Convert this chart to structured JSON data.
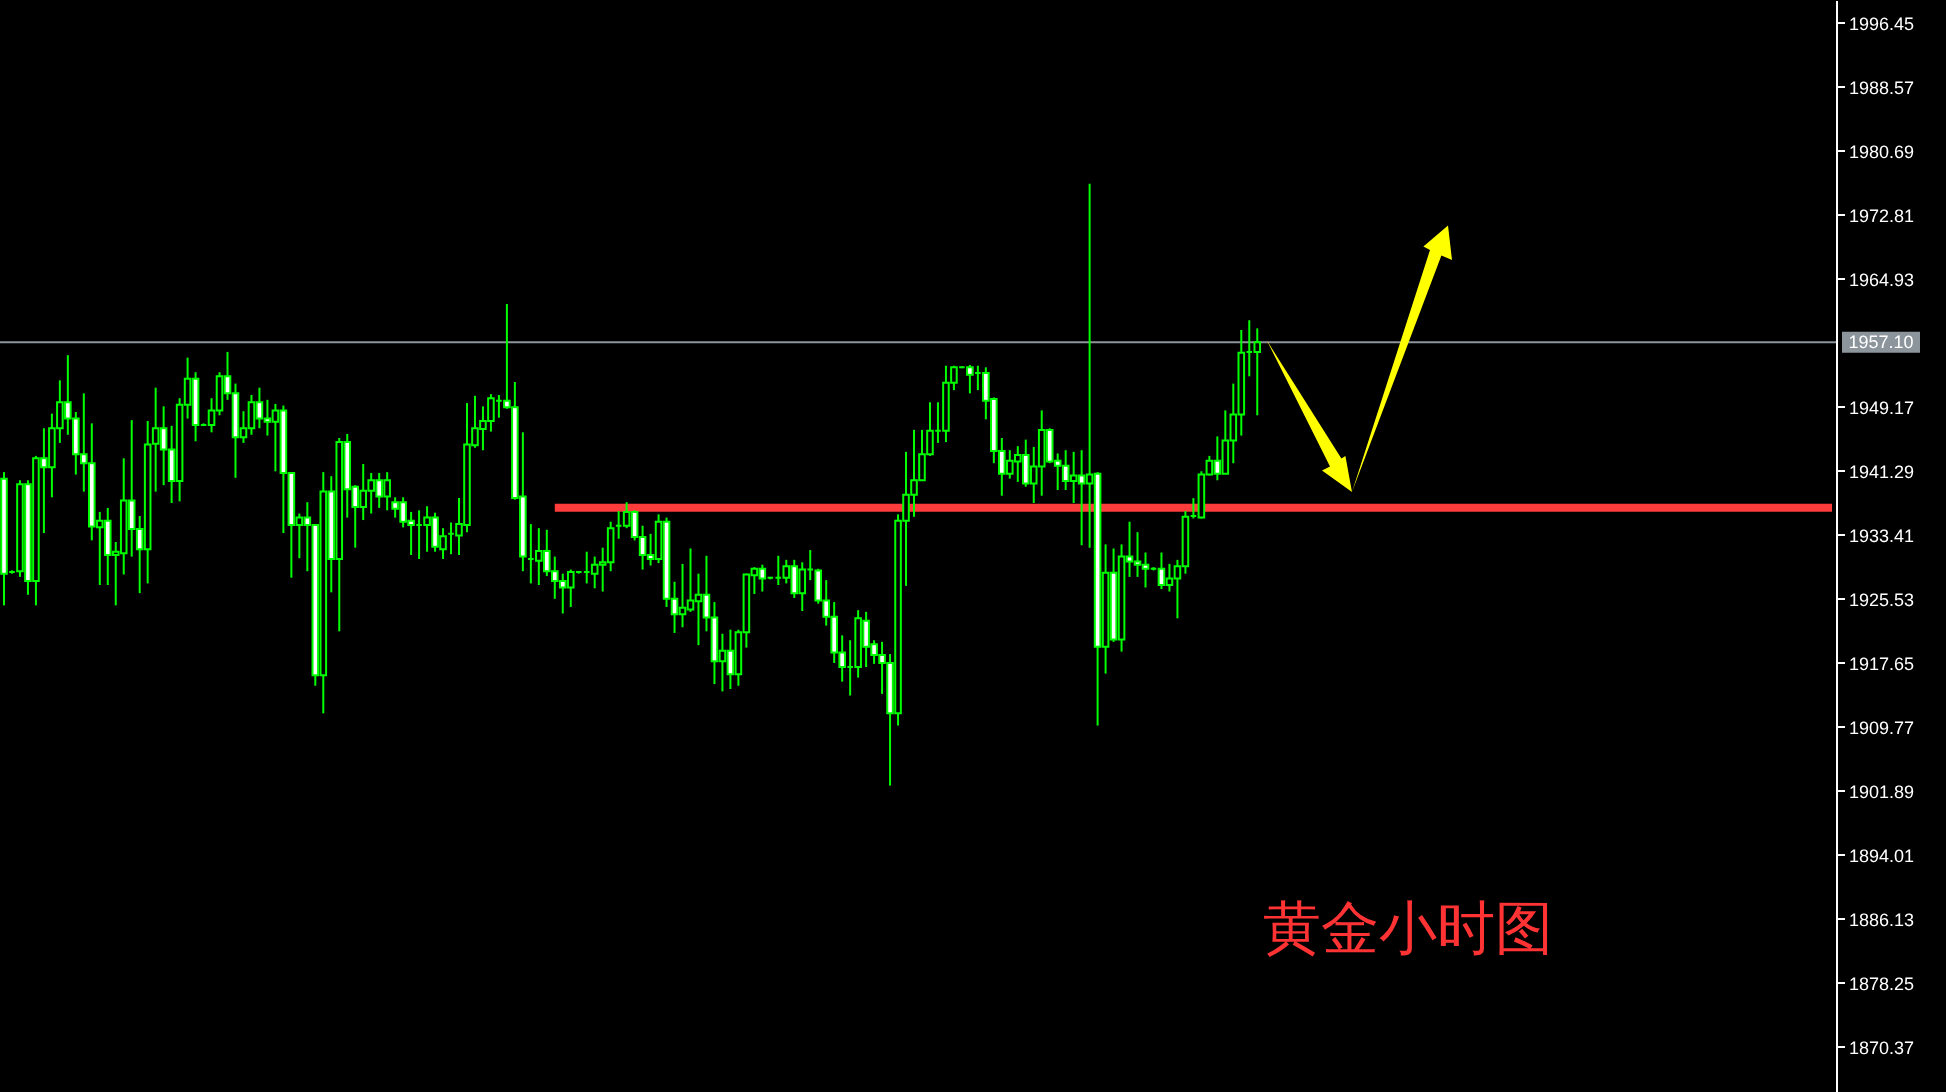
{
  "chart_data": {
    "type": "candlestick",
    "color": "#00ff00",
    "categories": [
      null,
      null,
      null,
      null,
      null,
      null,
      null,
      null,
      null,
      null,
      null,
      null,
      null,
      null,
      null,
      null,
      null,
      null,
      null,
      null,
      null,
      null,
      null,
      null,
      null,
      null,
      null,
      null,
      null,
      null,
      null,
      null,
      null,
      null,
      null,
      null,
      null,
      null,
      null,
      null,
      null,
      null,
      null,
      null,
      null,
      null,
      null,
      null,
      null,
      null,
      null,
      null,
      null,
      null,
      null,
      null,
      null,
      null,
      null,
      null,
      null,
      null,
      null,
      null,
      null,
      null,
      null,
      null,
      null,
      null,
      null,
      null,
      null,
      null,
      null,
      null,
      null,
      null,
      null,
      null,
      null,
      null,
      null,
      null,
      null,
      null,
      null,
      null,
      null,
      null,
      null,
      null,
      null,
      null,
      null,
      null,
      null,
      null,
      null,
      null,
      null,
      null,
      null,
      null,
      null,
      null,
      null,
      null,
      null,
      null,
      null,
      null,
      null,
      null,
      null,
      null,
      null,
      null,
      null,
      null,
      null,
      null,
      null,
      null,
      null,
      null,
      null,
      null,
      null,
      null,
      null,
      null,
      null,
      null,
      null,
      null,
      null,
      null,
      null,
      null,
      null,
      null,
      null,
      null,
      null,
      null,
      null,
      null,
      null,
      null,
      null,
      null,
      null,
      null,
      null,
      null,
      null,
      null,
      null,
      null,
      null,
      null,
      null,
      null,
      null,
      null,
      null,
      null,
      null,
      null,
      null,
      null,
      null,
      null,
      null,
      null,
      null,
      null,
      null,
      null,
      null,
      null,
      null,
      null,
      null,
      null,
      null,
      null,
      null,
      null,
      null,
      null,
      null,
      null,
      null,
      null,
      null,
      null,
      null,
      null,
      null,
      null,
      null,
      null,
      null,
      null,
      null,
      null,
      null,
      null,
      null,
      null,
      null,
      null,
      null,
      null,
      null,
      null,
      null,
      null,
      null,
      null,
      null,
      null,
      null,
      null,
      null,
      null,
      null,
      null
    ],
    "ohlc": [
      [
        1940.3,
        1941.1,
        1924.7,
        1928.6
      ],
      [
        1928.8,
        1929.0,
        1928.6,
        1928.8
      ],
      [
        1928.9,
        1940.1,
        1928.2,
        1939.6
      ],
      [
        1939.6,
        1940.1,
        1926.0,
        1927.7
      ],
      [
        1927.7,
        1943.1,
        1924.7,
        1942.8
      ],
      [
        1942.8,
        1946.5,
        1933.6,
        1941.7
      ],
      [
        1941.7,
        1948.3,
        1938.0,
        1946.5
      ],
      [
        1946.5,
        1952.4,
        1944.7,
        1949.7
      ],
      [
        1949.7,
        1955.5,
        1945.7,
        1947.7
      ],
      [
        1947.7,
        1948.5,
        1940.8,
        1943.3
      ],
      [
        1943.3,
        1950.8,
        1938.7,
        1942.2
      ],
      [
        1942.2,
        1947.1,
        1932.7,
        1934.4
      ],
      [
        1934.3,
        1936.2,
        1927.2,
        1935.1
      ],
      [
        1935.1,
        1936.7,
        1927.2,
        1930.9
      ],
      [
        1930.9,
        1932.5,
        1924.7,
        1931.3
      ],
      [
        1931.1,
        1942.8,
        1928.5,
        1937.6
      ],
      [
        1937.6,
        1947.5,
        1930.7,
        1934.1
      ],
      [
        1934.1,
        1935.7,
        1926.2,
        1931.6
      ],
      [
        1931.6,
        1947.4,
        1927.4,
        1944.5
      ],
      [
        1944.6,
        1951.5,
        1938.7,
        1946.5
      ],
      [
        1946.5,
        1949.2,
        1939.5,
        1943.9
      ],
      [
        1943.9,
        1946.8,
        1937.3,
        1940.0
      ],
      [
        1940.0,
        1950.2,
        1937.5,
        1949.4
      ],
      [
        1949.4,
        1955.2,
        1947.7,
        1952.6
      ],
      [
        1952.6,
        1953.4,
        1944.9,
        1946.9
      ],
      [
        1946.9,
        1947.1,
        1946.8,
        1946.9
      ],
      [
        1946.9,
        1950.2,
        1946.0,
        1948.7
      ],
      [
        1948.7,
        1953.4,
        1948.1,
        1952.9
      ],
      [
        1952.9,
        1955.9,
        1950.0,
        1950.8
      ],
      [
        1950.8,
        1952.0,
        1940.4,
        1945.4
      ],
      [
        1945.4,
        1948.6,
        1944.7,
        1946.5
      ],
      [
        1946.5,
        1950.6,
        1945.7,
        1949.7
      ],
      [
        1949.7,
        1951.5,
        1946.5,
        1947.7
      ],
      [
        1947.7,
        1950.0,
        1945.6,
        1947.3
      ],
      [
        1947.3,
        1949.5,
        1941.2,
        1948.7
      ],
      [
        1948.7,
        1949.3,
        1933.6,
        1941.0
      ],
      [
        1941.0,
        1941.0,
        1928.1,
        1934.6
      ],
      [
        1934.6,
        1936.0,
        1930.5,
        1935.5
      ],
      [
        1935.5,
        1937.4,
        1928.9,
        1934.6
      ],
      [
        1934.6,
        1934.6,
        1914.8,
        1916.1
      ],
      [
        1916.1,
        1941.1,
        1911.4,
        1938.7
      ],
      [
        1938.7,
        1940.6,
        1926.3,
        1930.4
      ],
      [
        1930.4,
        1945.3,
        1921.5,
        1944.8
      ],
      [
        1944.8,
        1945.8,
        1935.5,
        1939.0
      ],
      [
        1939.3,
        1939.5,
        1931.8,
        1936.8
      ],
      [
        1936.8,
        1942.1,
        1935.2,
        1938.8
      ],
      [
        1938.8,
        1941.0,
        1936.0,
        1940.1
      ],
      [
        1940.1,
        1941.0,
        1936.7,
        1938.1
      ],
      [
        1938.1,
        1941.1,
        1936.4,
        1940.1
      ],
      [
        1937.4,
        1938.0,
        1935.5,
        1936.6
      ],
      [
        1937.4,
        1938.0,
        1934.3,
        1935.0
      ],
      [
        1935.1,
        1936.2,
        1930.9,
        1934.6
      ],
      [
        1934.6,
        1936.4,
        1930.4,
        1934.6
      ],
      [
        1934.6,
        1936.9,
        1931.3,
        1935.5
      ],
      [
        1935.5,
        1936.1,
        1931.3,
        1931.9
      ],
      [
        1931.6,
        1934.2,
        1930.4,
        1933.2
      ],
      [
        1933.5,
        1934.9,
        1931.0,
        1933.5
      ],
      [
        1933.3,
        1937.9,
        1930.9,
        1934.7
      ],
      [
        1934.6,
        1949.6,
        1933.7,
        1944.5
      ],
      [
        1944.4,
        1950.5,
        1944.1,
        1946.5
      ],
      [
        1946.4,
        1949.2,
        1943.8,
        1947.4
      ],
      [
        1947.4,
        1950.7,
        1946.1,
        1950.2
      ],
      [
        1949.9,
        1950.6,
        1947.8,
        1949.9
      ],
      [
        1949.9,
        1961.8,
        1948.9,
        1949.1
      ],
      [
        1949.1,
        1952.2,
        1937.7,
        1937.9
      ],
      [
        1938.1,
        1946.0,
        1928.9,
        1930.7
      ],
      [
        1930.4,
        1934.7,
        1927.4,
        1930.4
      ],
      [
        1930.2,
        1934.2,
        1927.2,
        1931.4
      ],
      [
        1931.4,
        1934.0,
        1928.3,
        1928.9
      ],
      [
        1928.9,
        1930.7,
        1925.5,
        1927.7
      ],
      [
        1927.7,
        1928.6,
        1923.7,
        1926.9
      ],
      [
        1926.9,
        1929.1,
        1924.5,
        1928.8
      ],
      [
        1928.8,
        1928.9,
        1928.6,
        1928.8
      ],
      [
        1928.8,
        1931.3,
        1927.4,
        1928.8
      ],
      [
        1928.6,
        1930.7,
        1926.8,
        1929.7
      ],
      [
        1929.7,
        1931.8,
        1926.4,
        1930.0
      ],
      [
        1930.0,
        1935.0,
        1928.9,
        1934.2
      ],
      [
        1934.5,
        1936.3,
        1932.9,
        1934.5
      ],
      [
        1934.5,
        1937.4,
        1934.2,
        1936.2
      ],
      [
        1936.2,
        1936.4,
        1932.7,
        1933.1
      ],
      [
        1933.1,
        1934.5,
        1929.1,
        1930.9
      ],
      [
        1930.9,
        1933.5,
        1929.6,
        1930.4
      ],
      [
        1930.4,
        1935.9,
        1929.9,
        1935.0
      ],
      [
        1935.0,
        1935.5,
        1924.5,
        1925.5
      ],
      [
        1925.5,
        1927.6,
        1921.3,
        1923.6
      ],
      [
        1923.6,
        1929.8,
        1922.0,
        1924.4
      ],
      [
        1924.2,
        1931.7,
        1923.9,
        1925.3
      ],
      [
        1925.2,
        1928.6,
        1919.8,
        1926.0
      ],
      [
        1926.0,
        1930.8,
        1921.5,
        1923.2
      ],
      [
        1923.2,
        1925.1,
        1915.0,
        1917.8
      ],
      [
        1917.8,
        1921.2,
        1914.1,
        1919.1
      ],
      [
        1919.1,
        1921.7,
        1914.4,
        1916.2
      ],
      [
        1916.2,
        1921.7,
        1914.8,
        1921.4
      ],
      [
        1921.4,
        1928.6,
        1919.5,
        1928.5
      ],
      [
        1928.4,
        1929.4,
        1926.1,
        1929.2
      ],
      [
        1929.2,
        1929.7,
        1926.4,
        1928.0
      ],
      [
        1928.1,
        1928.2,
        1927.9,
        1928.1
      ],
      [
        1928.1,
        1930.8,
        1927.2,
        1928.1
      ],
      [
        1928.1,
        1930.3,
        1927.4,
        1929.5
      ],
      [
        1929.5,
        1930.3,
        1925.6,
        1926.2
      ],
      [
        1926.2,
        1930.0,
        1924.0,
        1929.1
      ],
      [
        1929.1,
        1931.5,
        1927.8,
        1929.1
      ],
      [
        1929.0,
        1929.2,
        1924.9,
        1925.3
      ],
      [
        1925.3,
        1927.8,
        1922.2,
        1923.3
      ],
      [
        1923.3,
        1925.1,
        1917.6,
        1918.9
      ],
      [
        1918.9,
        1921.0,
        1915.3,
        1917.1
      ],
      [
        1917.1,
        1920.4,
        1913.6,
        1917.1
      ],
      [
        1917.1,
        1924.1,
        1915.8,
        1923.1
      ],
      [
        1922.8,
        1923.9,
        1917.1,
        1919.6
      ],
      [
        1919.9,
        1920.4,
        1917.5,
        1918.6
      ],
      [
        1918.6,
        1920.2,
        1913.8,
        1917.6
      ],
      [
        1917.6,
        1918.7,
        1902.5,
        1911.4
      ],
      [
        1911.4,
        1935.9,
        1909.9,
        1935.1
      ],
      [
        1935.1,
        1943.6,
        1927.1,
        1938.3
      ],
      [
        1938.3,
        1946.3,
        1935.6,
        1940.1
      ],
      [
        1940.1,
        1946.3,
        1940.1,
        1943.3
      ],
      [
        1943.3,
        1949.7,
        1943.1,
        1946.2
      ],
      [
        1946.2,
        1949.7,
        1944.7,
        1946.2
      ],
      [
        1946.2,
        1954.2,
        1944.8,
        1952.1
      ],
      [
        1952.1,
        1954.2,
        1951.2,
        1954.0
      ],
      [
        1954.0,
        1954.1,
        1953.9,
        1954.0
      ],
      [
        1954.0,
        1954.3,
        1950.8,
        1953.1
      ],
      [
        1953.3,
        1954.2,
        1951.2,
        1953.3
      ],
      [
        1953.3,
        1954.0,
        1947.6,
        1949.9
      ],
      [
        1950.1,
        1950.3,
        1942.2,
        1943.7
      ],
      [
        1943.7,
        1945.3,
        1938.2,
        1940.9
      ],
      [
        1940.9,
        1943.8,
        1940.3,
        1942.5
      ],
      [
        1942.4,
        1944.3,
        1939.9,
        1943.2
      ],
      [
        1943.2,
        1945.1,
        1939.3,
        1939.7
      ],
      [
        1939.7,
        1944.2,
        1937.3,
        1941.8
      ],
      [
        1941.8,
        1948.7,
        1938.2,
        1946.3
      ],
      [
        1946.3,
        1946.5,
        1942.2,
        1942.4
      ],
      [
        1942.5,
        1943.4,
        1938.9,
        1941.9
      ],
      [
        1941.9,
        1943.8,
        1938.9,
        1940.0
      ],
      [
        1940.0,
        1943.6,
        1937.3,
        1940.7
      ],
      [
        1940.7,
        1943.8,
        1932.1,
        1939.7
      ],
      [
        1939.7,
        1976.6,
        1931.8,
        1940.8
      ],
      [
        1940.9,
        1941.1,
        1909.9,
        1919.6
      ],
      [
        1919.6,
        1932.2,
        1916.3,
        1928.7
      ],
      [
        1928.7,
        1931.7,
        1920.2,
        1920.5
      ],
      [
        1920.5,
        1932.2,
        1919.0,
        1930.7
      ],
      [
        1930.7,
        1935.0,
        1928.2,
        1930.1
      ],
      [
        1930.1,
        1933.7,
        1928.2,
        1929.7
      ],
      [
        1929.7,
        1931.2,
        1926.9,
        1929.2
      ],
      [
        1929.2,
        1929.4,
        1929.0,
        1929.2
      ],
      [
        1929.2,
        1931.2,
        1926.7,
        1927.2
      ],
      [
        1927.2,
        1929.8,
        1926.4,
        1928.0
      ],
      [
        1928.0,
        1930.3,
        1923.1,
        1929.5
      ],
      [
        1929.5,
        1936.3,
        1928.6,
        1935.6
      ],
      [
        1935.7,
        1937.9,
        1935.4,
        1935.7
      ],
      [
        1935.5,
        1941.2,
        1935.4,
        1940.8
      ],
      [
        1940.8,
        1943.1,
        1940.7,
        1942.5
      ],
      [
        1942.5,
        1945.5,
        1940.1,
        1940.9
      ],
      [
        1940.9,
        1948.7,
        1940.9,
        1945.0
      ],
      [
        1945.0,
        1952.0,
        1942.2,
        1948.2
      ],
      [
        1948.2,
        1958.6,
        1945.6,
        1955.8
      ],
      [
        1955.9,
        1959.8,
        1952.9,
        1955.9
      ],
      [
        1955.9,
        1958.8,
        1948.1,
        1957.1
      ],
      null,
      null,
      null,
      null,
      null,
      null,
      null,
      null,
      null,
      null,
      null,
      null,
      null,
      null,
      null,
      null,
      null,
      null,
      null,
      null,
      null,
      null,
      null,
      null,
      null,
      null,
      null,
      null,
      null,
      null,
      null,
      null,
      null,
      null,
      null,
      null,
      null,
      null,
      null,
      null,
      null,
      null,
      null,
      null,
      null,
      null,
      null,
      null,
      null,
      null,
      null,
      null,
      null,
      null,
      null,
      null,
      null,
      null,
      null,
      null,
      null,
      null,
      null,
      null,
      null,
      null,
      null,
      null,
      null,
      null,
      null,
      null
    ],
    "series": [
      {
        "type": "line",
        "color": "#ff3c3c",
        "values": [
          null,
          null,
          null,
          null,
          null,
          null,
          null,
          null,
          null,
          null,
          null,
          null,
          null,
          null,
          null,
          null,
          null,
          null,
          null,
          null,
          null,
          null,
          null,
          null,
          null,
          null,
          null,
          null,
          null,
          null,
          null,
          null,
          null,
          null,
          null,
          null,
          null,
          null,
          null,
          null,
          null,
          null,
          null,
          null,
          null,
          null,
          null,
          null,
          null,
          null,
          null,
          null,
          null,
          null,
          null,
          null,
          null,
          null,
          null,
          null,
          null,
          null,
          null,
          null,
          null,
          null,
          null,
          null,
          null,
          1936.7,
          1936.7,
          1936.7,
          1936.7,
          1936.7,
          1936.7,
          1936.7,
          1936.7,
          1936.7,
          1936.7,
          1936.7,
          1936.7,
          1936.7,
          1936.7,
          1936.7,
          1936.7,
          1936.7,
          1936.7,
          1936.7,
          1936.7,
          1936.7,
          1936.7,
          1936.7,
          1936.7,
          1936.7,
          1936.7,
          1936.7,
          1936.7,
          1936.7,
          1936.7,
          1936.7,
          1936.7,
          1936.7,
          1936.7,
          1936.7,
          1936.7,
          1936.7,
          1936.7,
          1936.7,
          1936.7,
          1936.7,
          1936.7,
          1936.7,
          1936.7,
          1936.7,
          1936.7,
          1936.7,
          1936.7,
          1936.7,
          1936.7,
          1936.7,
          1936.7,
          1936.7,
          1936.7,
          1936.7,
          1936.7,
          1936.7,
          1936.7,
          1936.7,
          1936.7,
          1936.7,
          1936.7,
          1936.7,
          1936.7,
          1936.7,
          1936.7,
          1936.7,
          1936.7,
          1936.7,
          1936.7,
          1936.7,
          1936.7,
          1936.7,
          1936.7,
          1936.7,
          1936.7,
          1936.7,
          1936.7,
          1936.7,
          1936.7,
          1936.7,
          1936.7,
          1936.7,
          1936.7,
          1936.7,
          1936.7,
          1936.7,
          1936.7,
          1936.7,
          1936.7,
          1936.7,
          1936.7,
          1936.7,
          1936.7,
          1936.7,
          1936.7,
          1936.7,
          1936.7,
          1936.7,
          1936.7,
          1936.7,
          1936.7,
          1936.7,
          1936.7,
          1936.7,
          1936.7,
          1936.7,
          1936.7,
          1936.7,
          1936.7,
          1936.7,
          1936.7,
          1936.7,
          1936.7,
          1936.7,
          1936.7,
          1936.7,
          1936.7,
          1936.7,
          1936.7,
          1936.7,
          1936.7,
          1936.7,
          1936.7,
          1936.7,
          1936.7,
          1936.7,
          1936.7,
          1936.7,
          1936.7,
          1936.7,
          1936.7,
          1936.7,
          1936.7,
          1936.7,
          1936.7,
          1936.7,
          1936.7,
          1936.7,
          1936.7,
          1936.7,
          1936.7,
          1936.7,
          1936.7,
          1936.7,
          1936.7,
          1936.7,
          1936.7,
          1936.7,
          1936.7,
          1936.7,
          1936.7,
          1936.7,
          1936.7,
          1936.7,
          1936.7,
          1936.7,
          1936.7,
          1936.7,
          1936.7,
          1936.7
        ]
      }
    ],
    "ylim": [
      1864.78,
      1999.23
    ],
    "yticks": [
      1996.45,
      1988.57,
      1980.69,
      1972.81,
      1964.93,
      1949.17,
      1941.29,
      1933.41,
      1925.53,
      1917.65,
      1909.77,
      1901.89,
      1894.01,
      1886.13,
      1878.25,
      1870.37
    ],
    "ref_lines": [
      {
        "axis": "y",
        "value": 1957.1,
        "label": "1957.10",
        "color": "#8c949c"
      }
    ],
    "annotations": [
      "黄金小时图"
    ],
    "tick_labels": "y"
  }
}
